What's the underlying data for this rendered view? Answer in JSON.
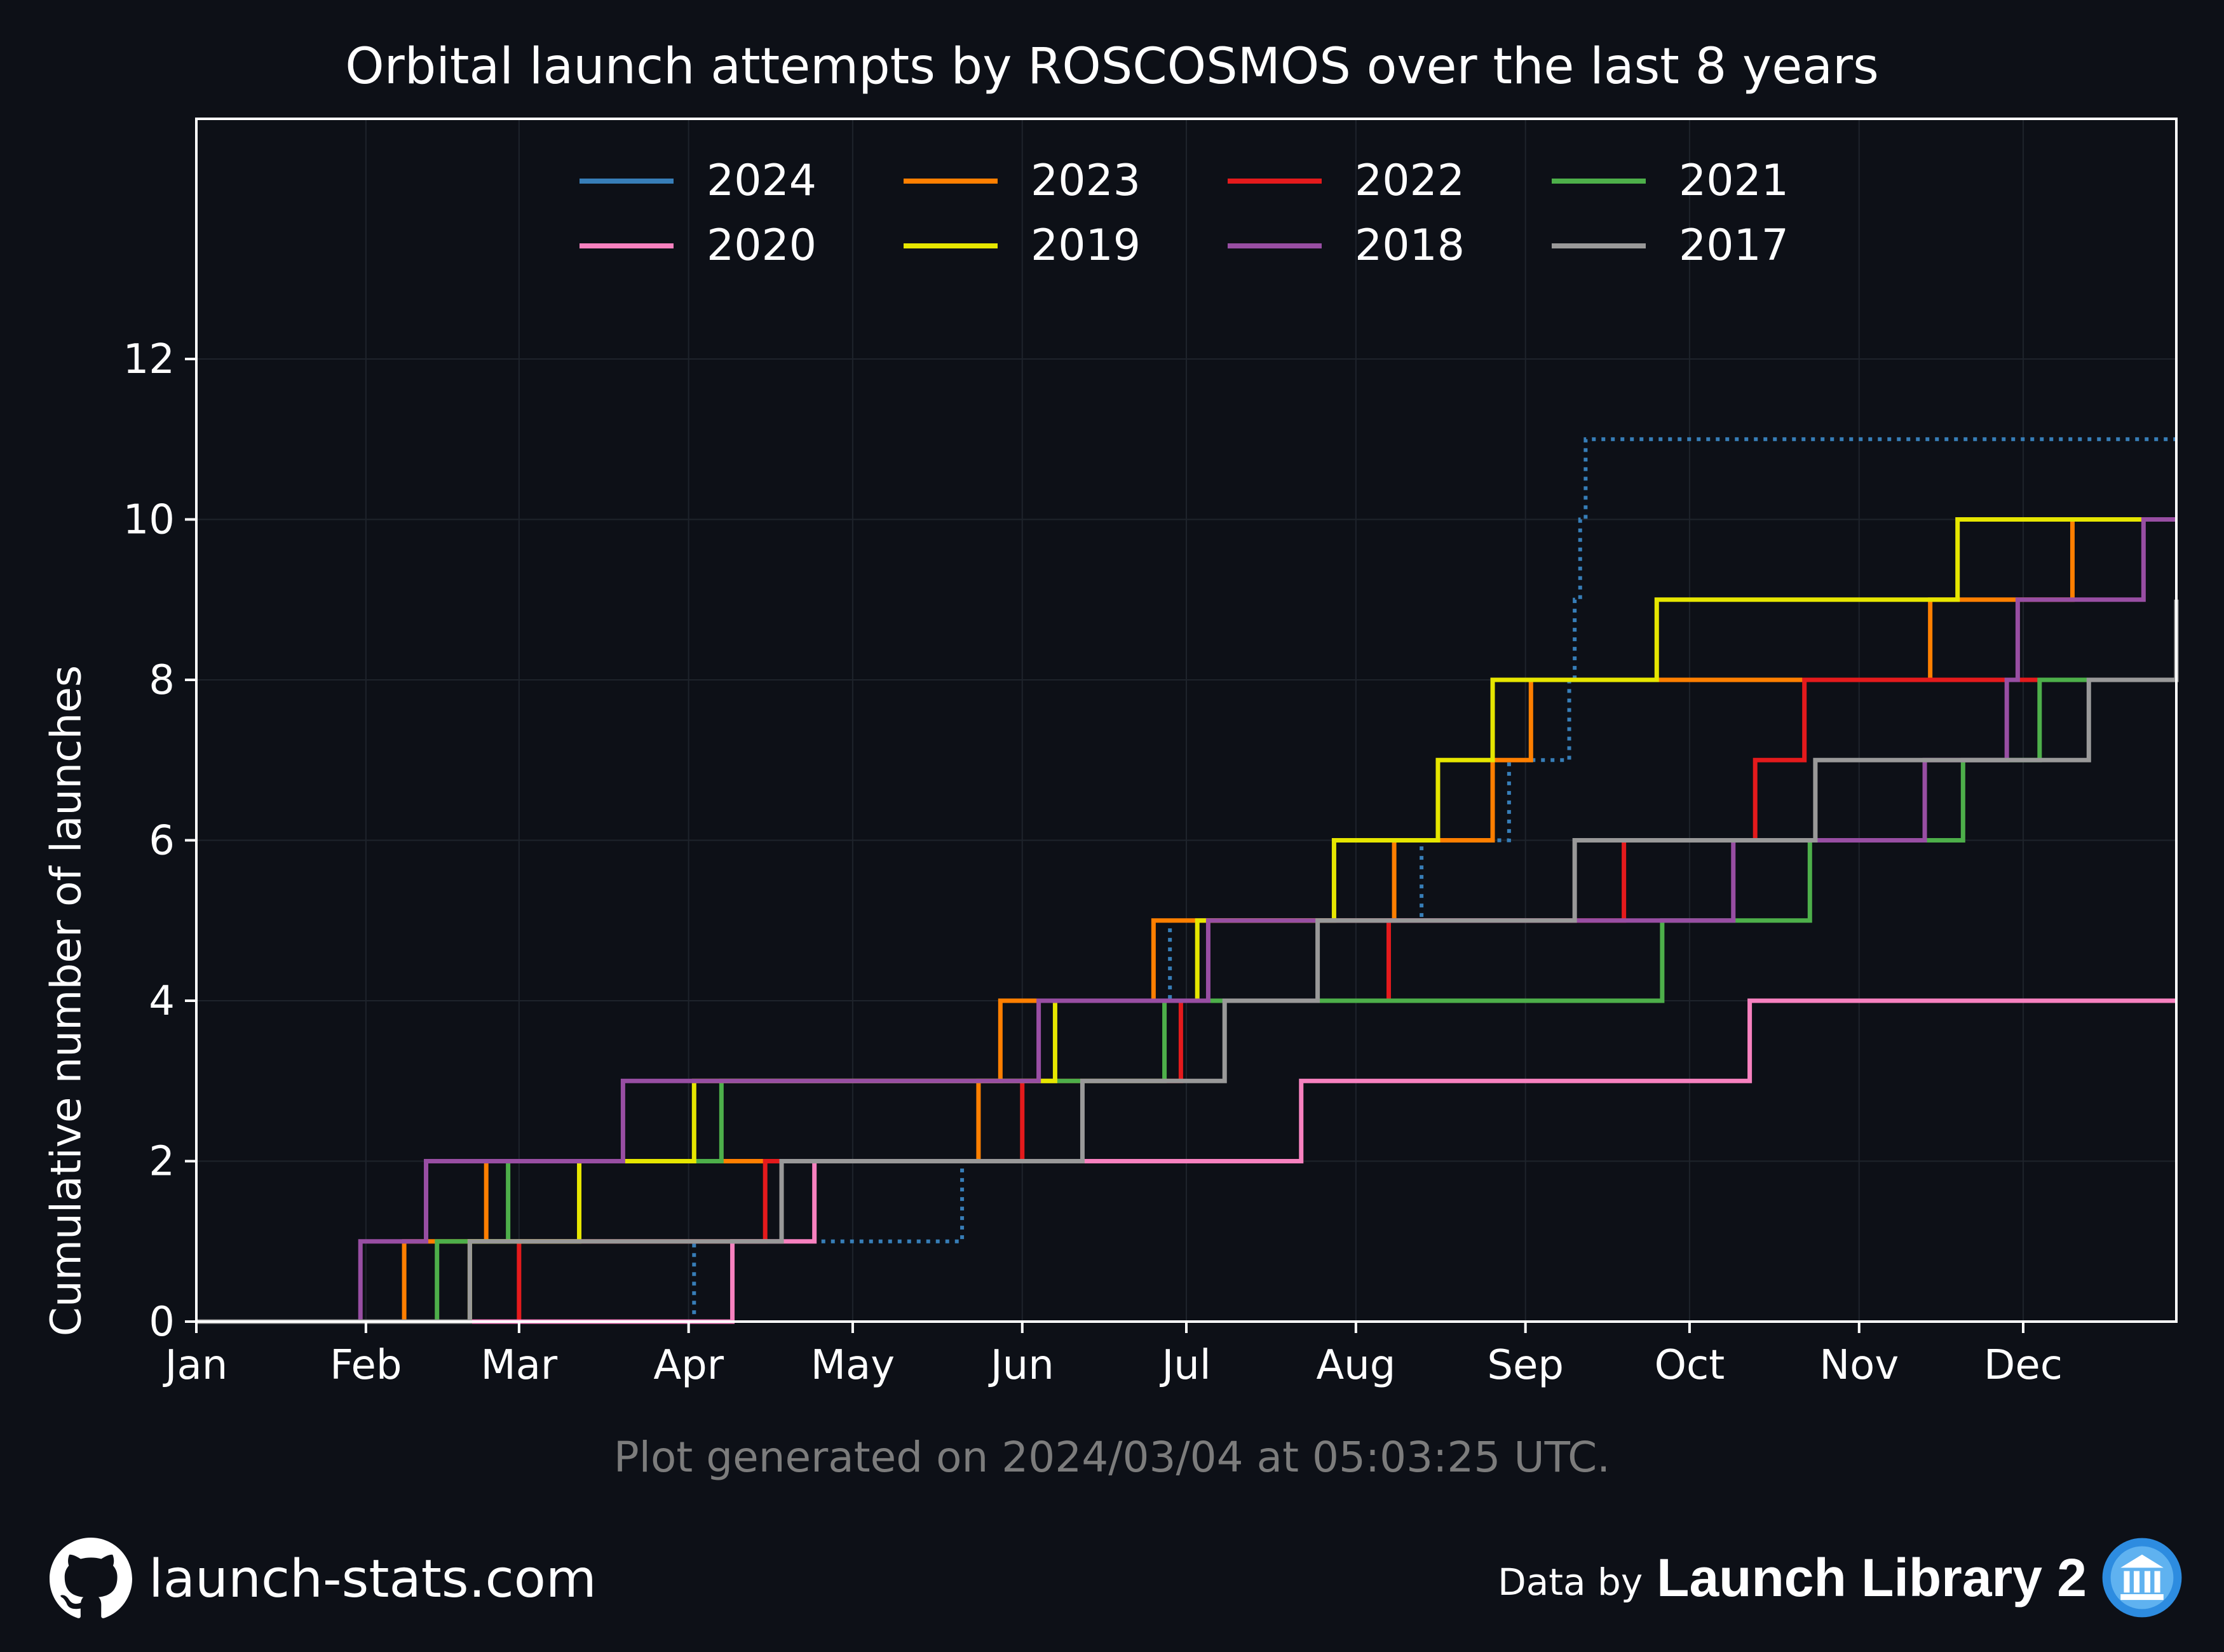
{
  "chart_data": {
    "type": "line",
    "title": "Orbital launch attempts by ROSCOSMOS over the last 8 years",
    "ylabel": "Cumulative number of launches",
    "xlabel": "",
    "x_ticks": [
      "Jan",
      "Feb",
      "Mar",
      "Apr",
      "May",
      "Jun",
      "Jul",
      "Aug",
      "Sep",
      "Oct",
      "Nov",
      "Dec"
    ],
    "y_ticks": [
      0,
      2,
      4,
      6,
      8,
      10,
      12
    ],
    "ylim": [
      0,
      12.6
    ],
    "xlim_day_of_year": [
      0,
      362
    ],
    "grid": true,
    "legend_placement": "top-center",
    "series": [
      {
        "name": "2024",
        "color": "#377eb8",
        "dotted": true,
        "launch_days": [
          91,
          140,
          151,
          157,
          178,
          224,
          240,
          251,
          252,
          253,
          254
        ]
      },
      {
        "name": "2023",
        "color": "#ff7f00",
        "dotted": false,
        "launch_days": [
          38,
          53,
          143,
          147,
          175,
          219,
          237,
          244,
          317,
          343
        ]
      },
      {
        "name": "2022",
        "color": "#e41a1c",
        "dotted": false,
        "launch_days": [
          59,
          104,
          151,
          180,
          218,
          261,
          285,
          294
        ]
      },
      {
        "name": "2021",
        "color": "#4daf4a",
        "dotted": false,
        "launch_days": [
          44,
          57,
          96,
          177,
          268,
          295,
          323,
          337
        ]
      },
      {
        "name": "2020",
        "color": "#f781bf",
        "dotted": false,
        "launch_days": [
          98,
          113,
          202,
          284
        ]
      },
      {
        "name": "2019",
        "color": "#e6e600",
        "dotted": false,
        "launch_days": [
          50,
          70,
          91,
          157,
          183,
          208,
          227,
          237,
          267,
          322
        ]
      },
      {
        "name": "2018",
        "color": "#984ea3",
        "dotted": false,
        "launch_days": [
          30,
          42,
          78,
          154,
          185,
          281,
          316,
          331,
          333,
          356
        ]
      },
      {
        "name": "2017",
        "color": "#999999",
        "dotted": false,
        "launch_days": [
          50,
          107,
          162,
          188,
          205,
          252,
          296,
          346,
          362
        ]
      }
    ]
  },
  "footer": {
    "generated": "Plot generated on 2024/03/04 at 05:03:25 UTC.",
    "site": "launch-stats.com",
    "data_by": "Data by",
    "provider": "Launch Library 2"
  },
  "icons": {
    "left": "github-icon",
    "right": "launch-library-icon"
  },
  "colors": {
    "background": "#0d1017",
    "axes": "#ffffff",
    "grid": "#1e232b"
  }
}
